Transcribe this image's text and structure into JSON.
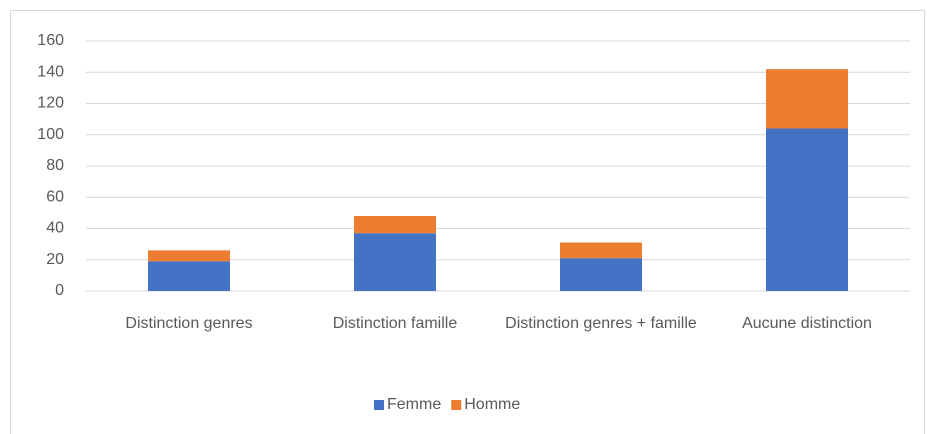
{
  "chart_data": {
    "type": "bar",
    "stacked": true,
    "categories": [
      "Distinction genres",
      "Distinction famille",
      "Distinction genres + famille",
      "Aucune distinction"
    ],
    "series": [
      {
        "name": "Femme",
        "color": "#4472c4",
        "values": [
          19,
          37,
          21,
          104
        ]
      },
      {
        "name": "Homme",
        "color": "#ed7d31",
        "values": [
          7,
          11,
          10,
          38
        ]
      }
    ],
    "ylim": [
      0,
      160
    ],
    "yticks": [
      0,
      20,
      40,
      60,
      80,
      100,
      120,
      140,
      160
    ],
    "grid": true,
    "legend": "bottom"
  }
}
